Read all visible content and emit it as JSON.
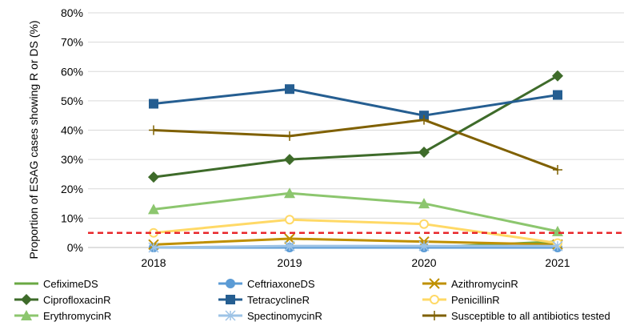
{
  "chart_data": {
    "type": "line",
    "title": "",
    "xlabel": "",
    "ylabel": "Proportion of ESAG cases showing R or DS (%)",
    "categories": [
      "2018",
      "2019",
      "2020",
      "2021"
    ],
    "ylim": [
      0,
      80
    ],
    "yticks": [
      "0%",
      "10%",
      "20%",
      "30%",
      "40%",
      "50%",
      "60%",
      "70%",
      "80%"
    ],
    "grid": "horizontal",
    "legend_position": "bottom",
    "reference_line": {
      "value": 5,
      "color": "#e8262a",
      "style": "dashed"
    },
    "series": [
      {
        "name": "CefiximeDS",
        "values": [
          0,
          0,
          0,
          2
        ],
        "color": "#6aa843",
        "marker": "none"
      },
      {
        "name": "CeftriaxoneDS",
        "values": [
          0,
          0,
          0,
          0
        ],
        "color": "#5b9bd5",
        "marker": "circle"
      },
      {
        "name": "AzithromycinR",
        "values": [
          1,
          3,
          2,
          1
        ],
        "color": "#bf9000",
        "marker": "x"
      },
      {
        "name": "CiprofloxacinR",
        "values": [
          24,
          30,
          32.5,
          58.5
        ],
        "color": "#3e6b2a",
        "marker": "diamond"
      },
      {
        "name": "TetracyclineR",
        "values": [
          49,
          54,
          45,
          52
        ],
        "color": "#255e91",
        "marker": "square"
      },
      {
        "name": "PenicillinR",
        "values": [
          5,
          9.5,
          8,
          1.5
        ],
        "color": "#ffd966",
        "marker": "circle-open"
      },
      {
        "name": "ErythromycinR",
        "values": [
          13,
          18.5,
          15,
          5.5
        ],
        "color": "#8cc66e",
        "marker": "triangle"
      },
      {
        "name": "SpectinomycinR",
        "values": [
          0,
          0.5,
          0.5,
          0.5
        ],
        "color": "#9dc3e6",
        "marker": "asterisk"
      },
      {
        "name": "Susceptible to all antibiotics tested",
        "values": [
          40,
          38,
          43.5,
          26.5
        ],
        "color": "#7f6000",
        "marker": "plus"
      }
    ]
  }
}
